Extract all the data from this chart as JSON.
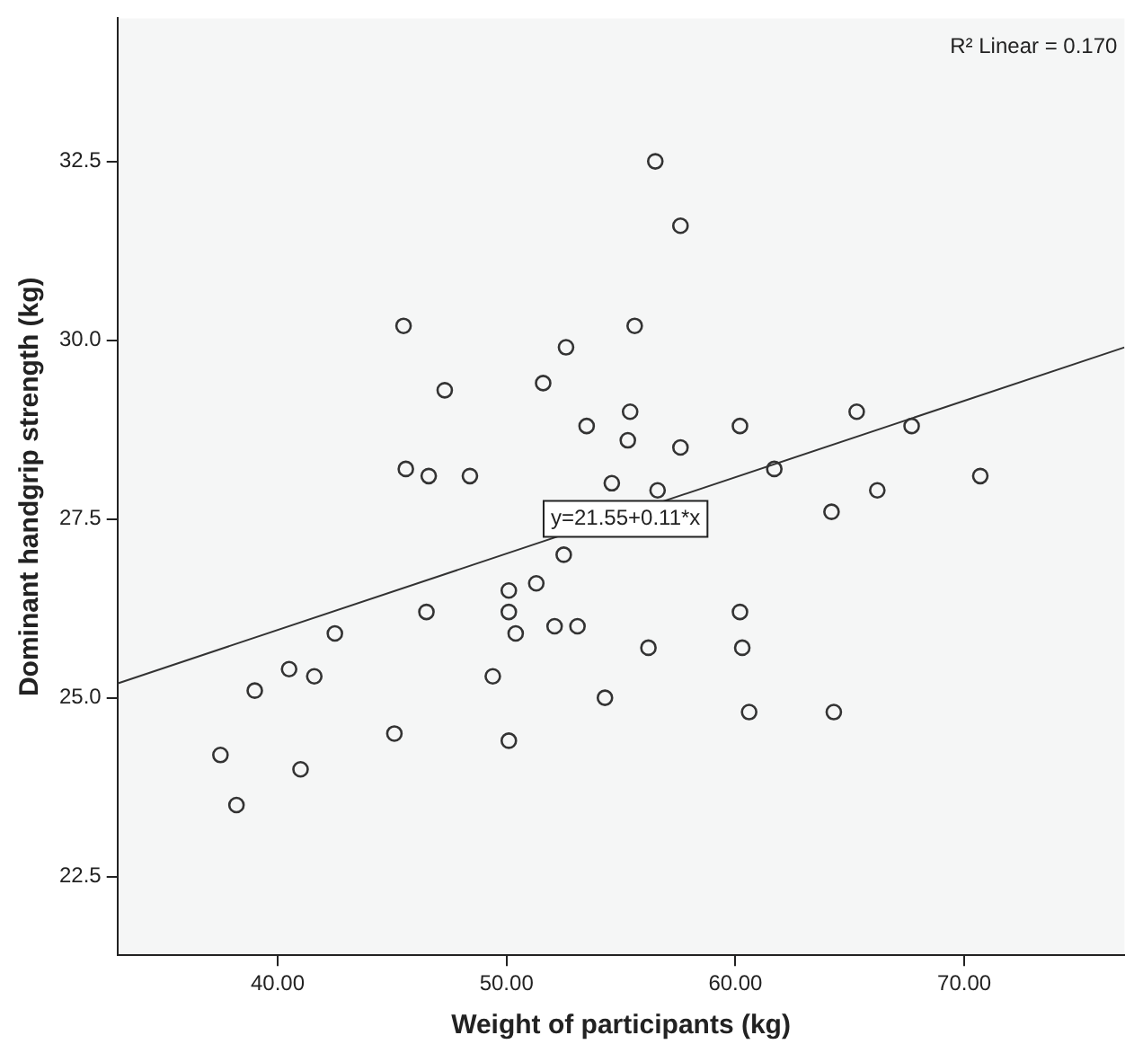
{
  "chart_data": {
    "type": "scatter",
    "xlabel": "Weight of participants (kg)",
    "ylabel": "Dominant handgrip strength (kg)",
    "xlim": [
      33,
      77
    ],
    "ylim": [
      21.4,
      34.5
    ],
    "xticks": [
      {
        "value": 40,
        "label": "40.00"
      },
      {
        "value": 50,
        "label": "50.00"
      },
      {
        "value": 60,
        "label": "60.00"
      },
      {
        "value": 70,
        "label": "70.00"
      }
    ],
    "yticks": [
      {
        "value": 22.5,
        "label": "22.5"
      },
      {
        "value": 25,
        "label": "25.0"
      },
      {
        "value": 27.5,
        "label": "27.5"
      },
      {
        "value": 30,
        "label": "30.0"
      },
      {
        "value": 32.5,
        "label": "32.5"
      }
    ],
    "grid": false,
    "legend": false,
    "marker": "circle",
    "series": [
      {
        "type": "scatter",
        "color": "#333333",
        "x": [
          37.5,
          38.2,
          39.0,
          40.5,
          41.6,
          42.5,
          41.0,
          45.1,
          46.5,
          49.4,
          50.1,
          50.1,
          50.4,
          50.1,
          51.3,
          52.5,
          52.1,
          53.1,
          54.3,
          45.5,
          52.6,
          51.6,
          47.3,
          53.5,
          45.6,
          46.6,
          48.4,
          54.6,
          56.5,
          57.6,
          55.6,
          55.4,
          55.3,
          57.6,
          60.2,
          65.3,
          67.7,
          56.6,
          61.7,
          66.2,
          64.2,
          70.7,
          60.2,
          60.3,
          56.2,
          60.6,
          64.3
        ],
        "values": [
          24.2,
          23.5,
          25.1,
          25.4,
          25.3,
          25.9,
          24.0,
          24.5,
          26.2,
          25.3,
          26.5,
          26.2,
          25.9,
          24.4,
          26.6,
          27.0,
          26.0,
          26.0,
          25.0,
          30.2,
          29.9,
          29.4,
          29.3,
          28.8,
          28.2,
          28.1,
          28.1,
          28.0,
          32.5,
          31.6,
          30.2,
          29.0,
          28.6,
          28.5,
          28.8,
          29.0,
          28.8,
          27.9,
          28.2,
          27.9,
          27.6,
          28.1,
          26.2,
          25.7,
          25.7,
          24.8,
          24.8
        ]
      },
      {
        "type": "line",
        "color": "#333333",
        "x": [
          33,
          77
        ],
        "values": [
          25.2,
          29.9
        ],
        "marker": "none",
        "line_style": "solid"
      }
    ],
    "annotations": [
      "R² Linear = 0.170",
      {
        "text": "y=21.55+0.11*x",
        "x": 55.2,
        "y": 27.5
      }
    ]
  }
}
